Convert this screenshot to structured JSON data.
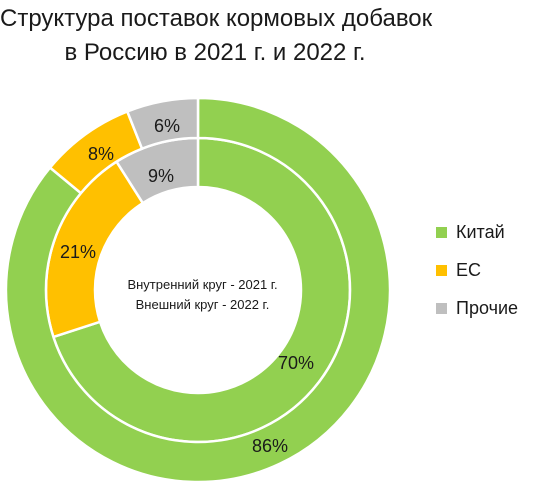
{
  "title": {
    "line1": "Структура поставок кормовых добавок",
    "line2": "в Россию в 2021 г. и 2022 г."
  },
  "center_note": {
    "line1": "Внутренний круг - 2021 г.",
    "line2": "Внешний круг - 2022 г."
  },
  "chart_data": {
    "type": "pie",
    "variant": "doughnut",
    "categories": [
      "Китай",
      "ЕС",
      "Прочие"
    ],
    "colors": [
      "#92d050",
      "#ffc000",
      "#bfbfbf"
    ],
    "series": [
      {
        "ring": "inner",
        "values": [
          70,
          21,
          9
        ],
        "labels": [
          "70%",
          "21%",
          "9%"
        ]
      },
      {
        "ring": "outer",
        "values": [
          86,
          8,
          6
        ],
        "labels": [
          "86%",
          "8%",
          "6%"
        ]
      }
    ],
    "legend_position": "right"
  }
}
